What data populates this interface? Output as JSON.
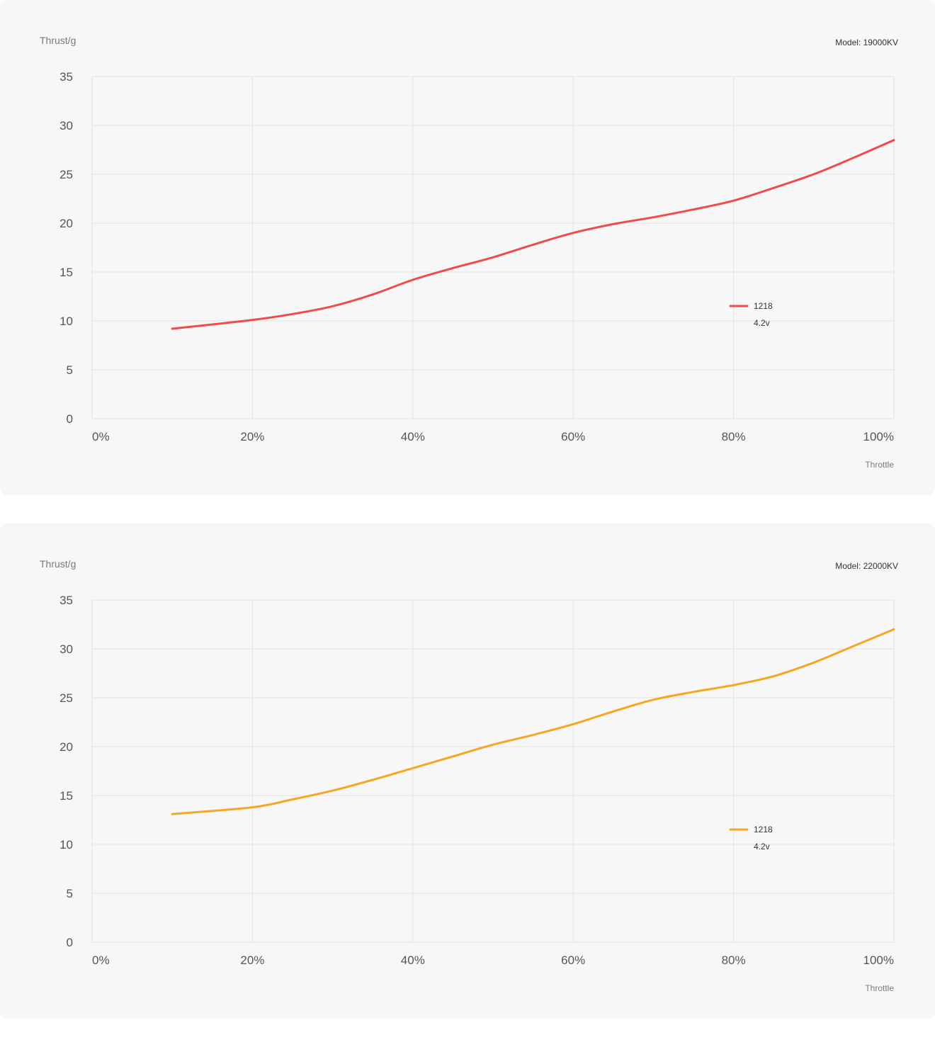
{
  "chart_data": [
    {
      "type": "line",
      "model": "Model: 19000KV",
      "ylabel": "Thrust/g",
      "xlabel": "Throttle",
      "ylim": [
        0,
        35
      ],
      "xlim": [
        0,
        100
      ],
      "yticks": [
        "0",
        "5",
        "10",
        "15",
        "20",
        "25",
        "30",
        "35"
      ],
      "xticks": [
        "0%",
        "20%",
        "40%",
        "60%",
        "80%",
        "100%"
      ],
      "grid": true,
      "legend_position": "right-middle",
      "series": [
        {
          "name": "1218",
          "sub": "4.2v",
          "color": "#f04a4a",
          "x": [
            10,
            20,
            25,
            30,
            35,
            40,
            45,
            50,
            55,
            60,
            65,
            70,
            75,
            80,
            85,
            90,
            95,
            100
          ],
          "y": [
            9.2,
            10.1,
            10.7,
            11.5,
            12.7,
            14.2,
            15.4,
            16.5,
            17.8,
            19.0,
            19.9,
            20.6,
            21.4,
            22.3,
            23.6,
            25.0,
            26.7,
            28.5
          ]
        }
      ]
    },
    {
      "type": "line",
      "model": "Model: 22000KV",
      "ylabel": "Thrust/g",
      "xlabel": "Throttle",
      "ylim": [
        0,
        35
      ],
      "xlim": [
        0,
        100
      ],
      "yticks": [
        "0",
        "5",
        "10",
        "15",
        "20",
        "25",
        "30",
        "35"
      ],
      "xticks": [
        "0%",
        "20%",
        "40%",
        "60%",
        "80%",
        "100%"
      ],
      "grid": true,
      "legend_position": "right-middle",
      "series": [
        {
          "name": "1218",
          "sub": "4.2v",
          "color": "#f5a623",
          "x": [
            10,
            20,
            25,
            30,
            35,
            40,
            45,
            50,
            55,
            60,
            65,
            70,
            75,
            80,
            85,
            90,
            95,
            100
          ],
          "y": [
            13.1,
            13.8,
            14.6,
            15.5,
            16.6,
            17.8,
            19.0,
            20.2,
            21.2,
            22.3,
            23.6,
            24.8,
            25.6,
            26.3,
            27.2,
            28.6,
            30.3,
            32.0
          ]
        }
      ]
    }
  ]
}
